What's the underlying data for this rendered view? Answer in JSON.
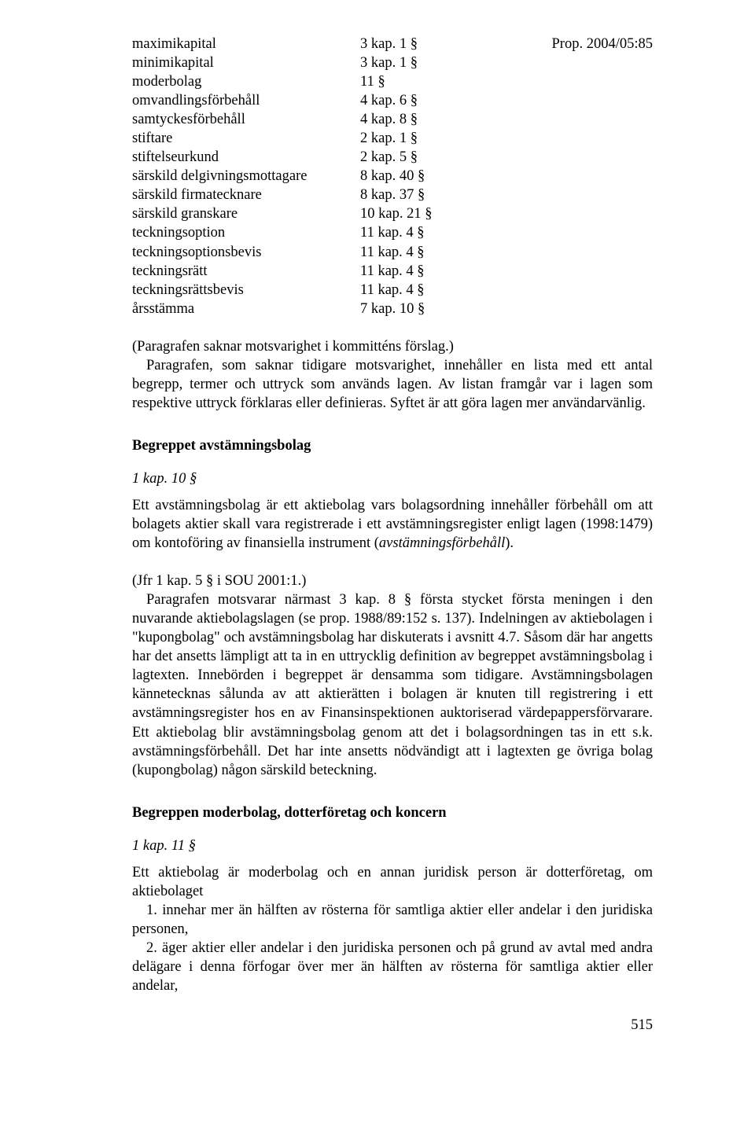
{
  "header_ref": "Prop. 2004/05:85",
  "terms": [
    {
      "label": "maximikapital",
      "value": "3 kap. 1 §"
    },
    {
      "label": "minimikapital",
      "value": "3 kap. 1 §"
    },
    {
      "label": "moderbolag",
      "value": "11 §"
    },
    {
      "label": "omvandlingsförbehåll",
      "value": "4 kap. 6 §"
    },
    {
      "label": "samtyckesförbehåll",
      "value": "4 kap. 8 §"
    },
    {
      "label": "stiftare",
      "value": "2 kap. 1 §"
    },
    {
      "label": "stiftelseurkund",
      "value": "2 kap. 5 §"
    },
    {
      "label": "särskild delgivningsmottagare",
      "value": "8 kap. 40 §"
    },
    {
      "label": "särskild firmatecknare",
      "value": "8 kap. 37 §"
    },
    {
      "label": "särskild granskare",
      "value": "10 kap. 21 §"
    },
    {
      "label": "teckningsoption",
      "value": "11 kap. 4 §"
    },
    {
      "label": "teckningsoptionsbevis",
      "value": "11 kap. 4 §"
    },
    {
      "label": "teckningsrätt",
      "value": "11 kap. 4 §"
    },
    {
      "label": "teckningsrättsbevis",
      "value": "11 kap. 4 §"
    },
    {
      "label": "årsstämma",
      "value": "7 kap. 10 §"
    }
  ],
  "para1_line1": "(Paragrafen saknar motsvarighet i kommitténs förslag.)",
  "para1_body": "Paragrafen, som saknar tidigare motsvarighet, innehåller en lista med ett antal begrepp, termer och uttryck som används lagen. Av listan framgår var i lagen som respektive uttryck förklaras eller definieras. Syftet är att göra lagen mer användarvänlig.",
  "section1_heading": "Begreppet avstämningsbolag",
  "section1_kapref": "1 kap. 10 §",
  "section1_body_pre": "Ett avstämningsbolag är ett aktiebolag vars bolagsordning innehåller förbehåll om att bolagets aktier skall vara registrerade i ett avstämningsregister enligt lagen (1998:1479) om kontoföring av finansiella instrument (",
  "section1_body_italic": "avstämningsförbehåll",
  "section1_body_post": ").",
  "section1_jfr": "(Jfr 1 kap. 5 § i SOU 2001:1.)",
  "section1_para2": "Paragrafen motsvarar närmast 3 kap. 8 § första stycket första meningen i den nuvarande aktiebolagslagen (se prop. 1988/89:152 s. 137). Indelningen av aktiebolagen i \"kupongbolag\" och avstämningsbolag har diskuterats i avsnitt 4.7. Såsom där har angetts har det ansetts lämpligt att ta in en uttrycklig definition av begreppet avstämningsbolag i lagtexten. Innebörden i begreppet är densamma som tidigare. Avstämningsbolagen kännetecknas sålunda av att aktierätten i bolagen är knuten till registrering i ett avstämningsregister hos en av Finansinspektionen auktoriserad värdepappersförvarare. Ett aktiebolag blir avstämningsbolag genom att det i bolagsordningen tas in ett s.k. avstämningsförbehåll. Det har inte ansetts nödvändigt att i lagtexten ge övriga bolag (kupongbolag) någon särskild beteckning.",
  "section2_heading": "Begreppen moderbolag, dotterföretag och koncern",
  "section2_kapref": "1 kap. 11 §",
  "section2_intro": "Ett aktiebolag är moderbolag och en annan juridisk person är dotterföretag, om aktiebolaget",
  "section2_item1": "1. innehar mer än hälften av rösterna för samtliga aktier eller andelar i den juridiska personen,",
  "section2_item2": "2. äger aktier eller andelar i den juridiska personen och på grund av avtal med andra delägare i denna förfogar över mer än hälften av rösterna för samtliga aktier eller andelar,",
  "page_number": "515"
}
